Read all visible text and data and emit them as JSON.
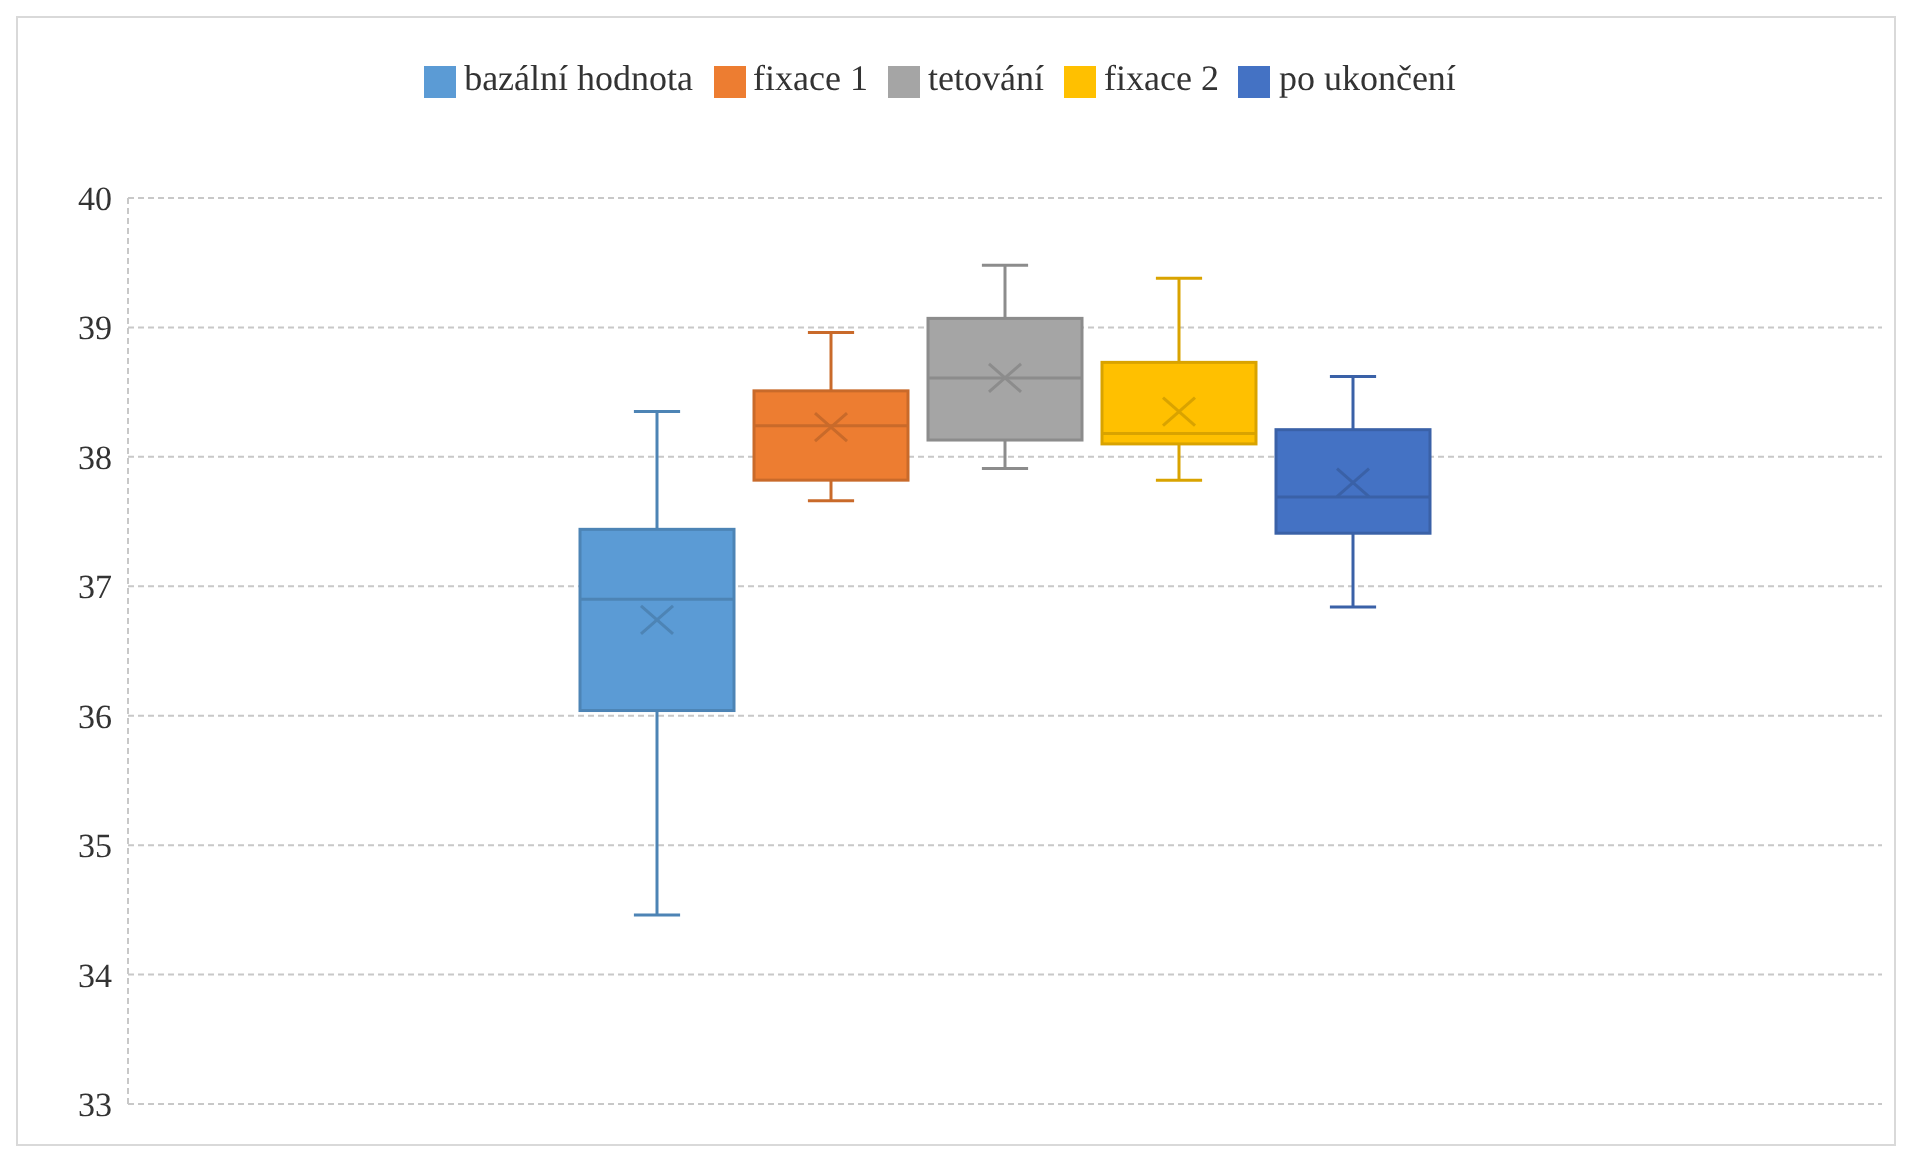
{
  "chart_data": {
    "type": "box",
    "categories": [
      null
    ],
    "ylim": [
      33,
      40
    ],
    "yticks": [
      33,
      34,
      35,
      36,
      37,
      38,
      39,
      40
    ],
    "grid": "y",
    "legend": "top",
    "tick_labels": "y",
    "series": [
      {
        "name": "bazální hodnota",
        "color": "#5b9bd5",
        "boxes": [
          {
            "low": 34.46,
            "q1": 36.04,
            "median": 36.9,
            "q3": 37.44,
            "high": 38.35,
            "mean": 36.74
          }
        ]
      },
      {
        "name": "fixace 1",
        "color": "#ed7d31",
        "boxes": [
          {
            "low": 37.66,
            "q1": 37.82,
            "median": 38.24,
            "q3": 38.51,
            "high": 38.96,
            "mean": 38.23
          }
        ]
      },
      {
        "name": "tetování",
        "color": "#a5a5a5",
        "boxes": [
          {
            "low": 37.91,
            "q1": 38.13,
            "median": 38.61,
            "q3": 39.07,
            "high": 39.48,
            "mean": 38.61
          }
        ]
      },
      {
        "name": "fixace 2",
        "color": "#ffc000",
        "boxes": [
          {
            "low": 37.82,
            "q1": 38.1,
            "median": 38.18,
            "q3": 38.73,
            "high": 39.38,
            "mean": 38.35
          }
        ]
      },
      {
        "name": "po ukončení",
        "color": "#4472c4",
        "boxes": [
          {
            "low": 36.84,
            "q1": 37.41,
            "median": 37.69,
            "q3": 38.21,
            "high": 38.62,
            "mean": 37.8
          }
        ]
      }
    ]
  }
}
